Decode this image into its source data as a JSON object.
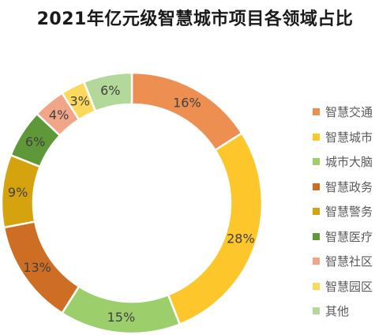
{
  "chart_data": {
    "type": "pie",
    "title": "2021年亿元级智慧城市项目各领域占比",
    "categories": [
      "智慧交通",
      "智慧城市",
      "城市大脑",
      "智慧政务",
      "智慧警务",
      "智慧医疗",
      "智慧社区",
      "智慧园区",
      "其他"
    ],
    "values": [
      16,
      28,
      15,
      13,
      9,
      6,
      4,
      3,
      6
    ],
    "value_labels": [
      "16%",
      "28%",
      "15%",
      "13%",
      "9%",
      "6%",
      "4%",
      "3%",
      "6%"
    ],
    "colors": [
      "#ee8f52",
      "#fdc62b",
      "#9ccf6c",
      "#cd6e24",
      "#d4a30e",
      "#5f9838",
      "#f1a687",
      "#fcd95c",
      "#b3d899"
    ],
    "style": "donut",
    "start_angle_deg": 0,
    "direction": "clockwise",
    "legend_position": "right"
  }
}
